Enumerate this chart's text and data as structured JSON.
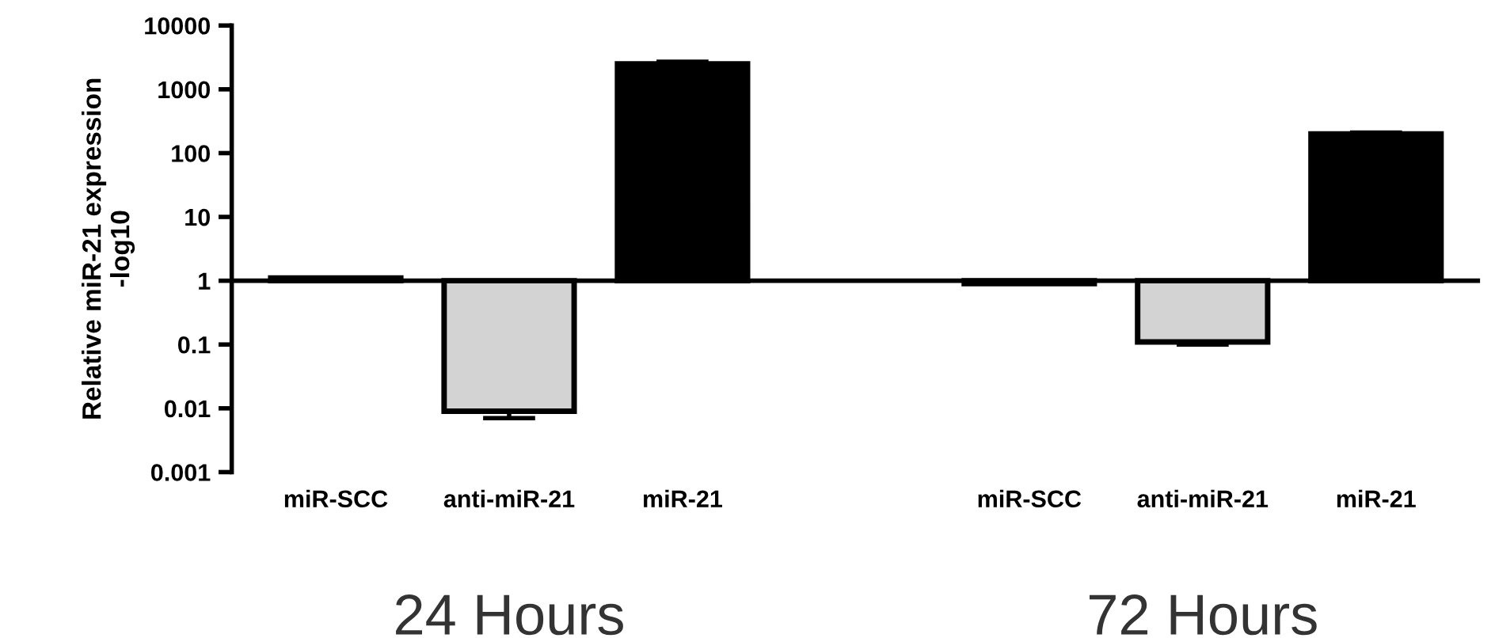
{
  "chart_data": {
    "type": "bar",
    "log": "y",
    "ylabel": "Relative miR-21 expression\n-log10",
    "categories": [
      "miR-SCC",
      "anti-miR-21",
      "miR-21",
      null,
      "miR-SCC",
      "anti-miR-21",
      "miR-21"
    ],
    "base": [
      1,
      1,
      1,
      null,
      1,
      1,
      1
    ],
    "values": [
      0.1,
      -0.991,
      2499,
      null,
      -0.1,
      -0.89,
      199
    ],
    "errors": [
      null,
      [
        0.007,
        0.009
      ],
      [
        2500,
        2700
      ],
      null,
      null,
      [
        0.1,
        0.11
      ],
      [
        190,
        210
      ]
    ],
    "colors": [
      "#ffffff",
      "#d3d3d3",
      "#000000",
      null,
      "#ffffff",
      "#d3d3d3",
      "#000000"
    ],
    "ylim": [
      0.001,
      10000
    ],
    "yticks": [
      0.001,
      0.01,
      0.1,
      1,
      10,
      100,
      1000,
      10000
    ],
    "ref_lines": [
      {
        "axis": "y",
        "value": 1,
        "color": "#000000"
      }
    ],
    "annotations": [
      "24 Hours",
      "72 Hours"
    ],
    "grid": false,
    "legend": false
  }
}
